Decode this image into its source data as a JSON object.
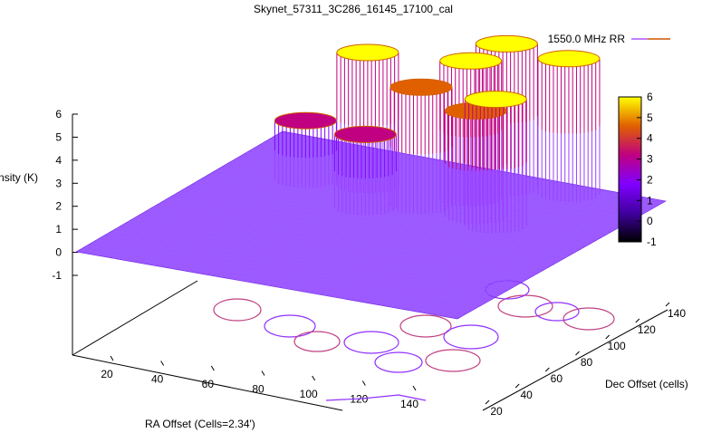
{
  "chart_data": {
    "type": "surface3d",
    "title": "Skynet_57311_3C286_16145_17100_cal",
    "xlabel": "RA Offset (Cells=2.34')",
    "ylabel": "Dec Offset (cells)",
    "zlabel": "Intensity (K)",
    "series": [
      {
        "name": "1550.0 MHz RR",
        "color": "#8000ff",
        "accent_color": "#e08000"
      }
    ],
    "x_ticks": [
      "20",
      "40",
      "60",
      "80",
      "100",
      "120",
      "140"
    ],
    "y_ticks": [
      "20",
      "40",
      "60",
      "80",
      "100",
      "120",
      "140"
    ],
    "z_ticks": [
      "-1",
      "0",
      "1",
      "2",
      "3",
      "4",
      "5",
      "6"
    ],
    "zlim": [
      -1,
      6
    ],
    "colorbar": {
      "ticks": [
        "-1",
        "0",
        "1",
        "2",
        "3",
        "4",
        "5",
        "6"
      ],
      "range": [
        -1,
        6
      ],
      "colors": [
        "#000000",
        "#4000a0",
        "#8000ff",
        "#c00080",
        "#e06000",
        "#ffff00"
      ]
    },
    "peaks": [
      {
        "x": 60,
        "y": 115,
        "height": 5.8
      },
      {
        "x": 95,
        "y": 120,
        "height": 6.0
      },
      {
        "x": 100,
        "y": 135,
        "height": 6.3
      },
      {
        "x": 120,
        "y": 140,
        "height": 5.9
      },
      {
        "x": 115,
        "y": 100,
        "height": 5.5
      },
      {
        "x": 85,
        "y": 105,
        "height": 5.2
      },
      {
        "x": 105,
        "y": 105,
        "height": 4.6
      },
      {
        "x": 70,
        "y": 95,
        "height": 3.2
      },
      {
        "x": 40,
        "y": 110,
        "height": 2.6
      }
    ]
  }
}
